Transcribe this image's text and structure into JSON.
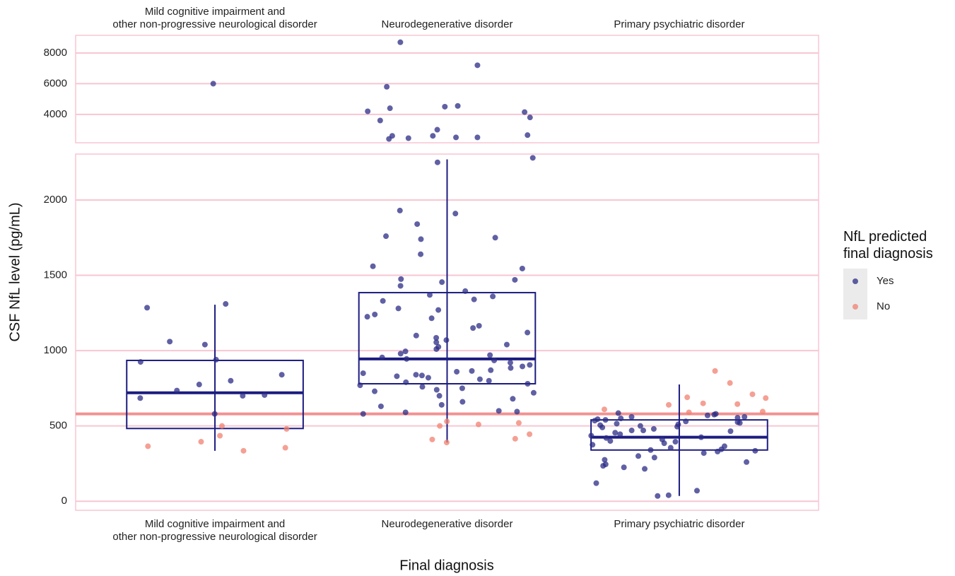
{
  "chart_data": {
    "type": "box_jitter",
    "x_label": "Final diagnosis",
    "y_label": "CSF NfL level (pg/mL)",
    "legend_title": "NfL predicted final diagnosis",
    "categories": [
      "Mild cognitive impairment and\nother non-progressive neurological disorder",
      "Neurodegenerative disorder",
      "Primary psychiatric disorder"
    ],
    "panels": [
      {
        "ylim": [
          2150,
          9150
        ],
        "yticks": [
          4000,
          6000,
          8000
        ]
      },
      {
        "ylim": [
          -60,
          2305
        ],
        "yticks": [
          0,
          500,
          1000,
          1500,
          2000
        ]
      }
    ],
    "grid": true,
    "grid_color": "#f8c6d2",
    "hline": {
      "value": 580,
      "color": "#f08080"
    },
    "box_color": "#1c1c80",
    "boxes": [
      {
        "low": 335,
        "q1": 483,
        "median": 720,
        "q3": 935,
        "high": 1305
      },
      {
        "low": 390,
        "q1": 780,
        "median": 945,
        "q3": 1385,
        "high": 2270
      },
      {
        "low": 35,
        "q1": 340,
        "median": 425,
        "q3": 540,
        "high": 775
      }
    ],
    "series": [
      {
        "name": "Yes",
        "color": "#2b2b85",
        "values": [
          [
            6000,
            1310,
            1285,
            1060,
            1040,
            940,
            925,
            840,
            800,
            775,
            735,
            705,
            700,
            685,
            580
          ],
          [
            8700,
            7200,
            5800,
            4550,
            4500,
            4400,
            4200,
            4150,
            3800,
            3600,
            3000,
            2650,
            2600,
            2600,
            2500,
            2500,
            2450,
            2400,
            2280,
            2250,
            1930,
            1910,
            1840,
            1760,
            1750,
            1740,
            1640,
            1560,
            1545,
            1475,
            1470,
            1455,
            1430,
            1395,
            1370,
            1360,
            1340,
            1330,
            1280,
            1270,
            1240,
            1225,
            1215,
            1165,
            1150,
            1120,
            1100,
            1085,
            1070,
            1055,
            1040,
            1025,
            1010,
            995,
            980,
            970,
            955,
            945,
            935,
            920,
            905,
            895,
            885,
            870,
            865,
            860,
            850,
            840,
            835,
            830,
            820,
            810,
            800,
            790,
            780,
            770,
            760,
            750,
            740,
            730,
            720,
            700,
            680,
            660,
            640,
            630,
            600,
            595,
            590,
            580
          ],
          [
            585,
            580,
            575,
            570,
            560,
            560,
            555,
            550,
            545,
            540,
            535,
            530,
            525,
            520,
            515,
            510,
            505,
            500,
            495,
            490,
            480,
            470,
            470,
            465,
            455,
            445,
            435,
            425,
            420,
            410,
            400,
            395,
            385,
            375,
            365,
            355,
            345,
            340,
            335,
            330,
            320,
            300,
            290,
            275,
            260,
            245,
            235,
            225,
            215,
            120,
            70,
            40,
            35
          ]
        ]
      },
      {
        "name": "No",
        "color": "#f08070",
        "values": [
          [
            500,
            480,
            435,
            395,
            365,
            355,
            335
          ],
          [
            530,
            520,
            510,
            500,
            445,
            415,
            410,
            390
          ],
          [
            865,
            785,
            710,
            690,
            685,
            650,
            645,
            640,
            610,
            595,
            590
          ]
        ]
      }
    ]
  }
}
